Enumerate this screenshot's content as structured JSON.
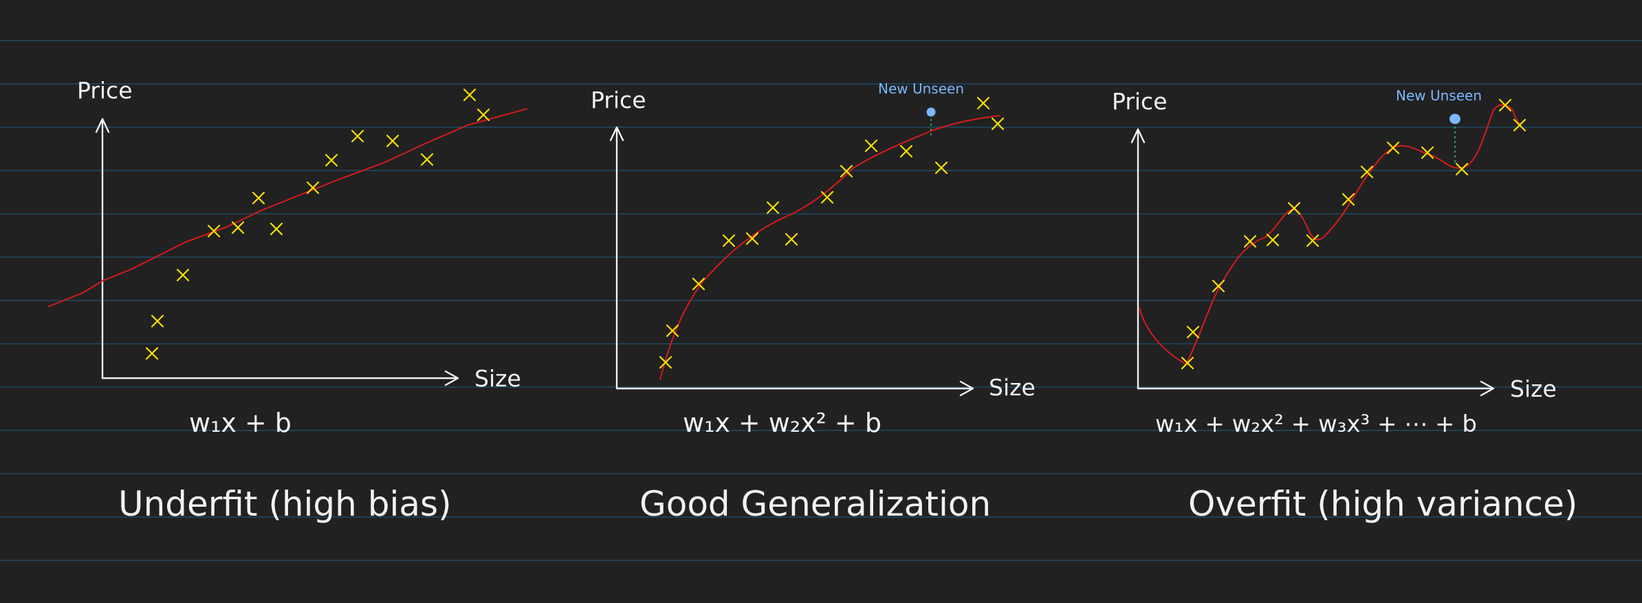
{
  "colors": {
    "background": "#212121",
    "ruled_line": "#1f4a66",
    "axis": "#f2f2f2",
    "fit_curve": "#d81b1b",
    "data_point": "#ffe100",
    "new_point": "#7ab8ff",
    "guide_line": "#2e9c5a",
    "text": "#f2f2f2"
  },
  "panels": [
    {
      "id": "underfit",
      "y_label": "Price",
      "x_label": "Size",
      "formula": "w₁x + b",
      "caption": "Underfit (high bias)",
      "model": "linear",
      "points": [
        [
          0.9,
          0.9
        ],
        [
          1.0,
          1.7
        ],
        [
          1.4,
          2.6
        ],
        [
          1.9,
          3.5
        ],
        [
          2.1,
          3.5
        ],
        [
          2.4,
          4.3
        ],
        [
          2.7,
          3.5
        ],
        [
          3.3,
          4.5
        ],
        [
          3.5,
          5.1
        ],
        [
          3.9,
          5.8
        ],
        [
          4.3,
          5.6
        ],
        [
          4.7,
          5.0
        ],
        [
          5.6,
          6.8
        ],
        [
          5.8,
          6.3
        ]
      ]
    },
    {
      "id": "good",
      "y_label": "Price",
      "x_label": "Size",
      "formula": "w₁x + w₂x² + b",
      "caption": "Good Generalization",
      "new_point_label": "New Unseen",
      "model": "quadratic",
      "points": [
        [
          0.3,
          0.6
        ],
        [
          0.4,
          1.4
        ],
        [
          0.8,
          2.6
        ],
        [
          1.2,
          3.3
        ],
        [
          1.5,
          3.3
        ],
        [
          1.9,
          3.8
        ],
        [
          2.2,
          3.3
        ],
        [
          2.6,
          4.3
        ],
        [
          2.9,
          5.1
        ],
        [
          3.3,
          5.7
        ],
        [
          3.8,
          5.5
        ],
        [
          4.2,
          5.3
        ],
        [
          4.8,
          6.6
        ],
        [
          5.1,
          6.2
        ]
      ],
      "new_point": [
        4.2,
        6.2
      ]
    },
    {
      "id": "overfit",
      "y_label": "Price",
      "x_label": "Size",
      "formula": "w₁x + w₂x² + w₃x³ + ⋯ + b",
      "caption": "Overfit (high variance)",
      "new_point_label": "New Unseen",
      "model": "high-degree polynomial",
      "points": [
        [
          0.6,
          0.6
        ],
        [
          0.7,
          1.3
        ],
        [
          1.0,
          2.4
        ],
        [
          1.4,
          3.6
        ],
        [
          1.6,
          3.6
        ],
        [
          1.9,
          4.3
        ],
        [
          2.1,
          3.6
        ],
        [
          2.6,
          4.5
        ],
        [
          2.9,
          5.0
        ],
        [
          3.1,
          5.7
        ],
        [
          3.7,
          5.5
        ],
        [
          4.1,
          5.4
        ],
        [
          4.8,
          6.8
        ],
        [
          5.0,
          6.4
        ]
      ],
      "new_point": [
        4.4,
        6.1
      ]
    }
  ]
}
